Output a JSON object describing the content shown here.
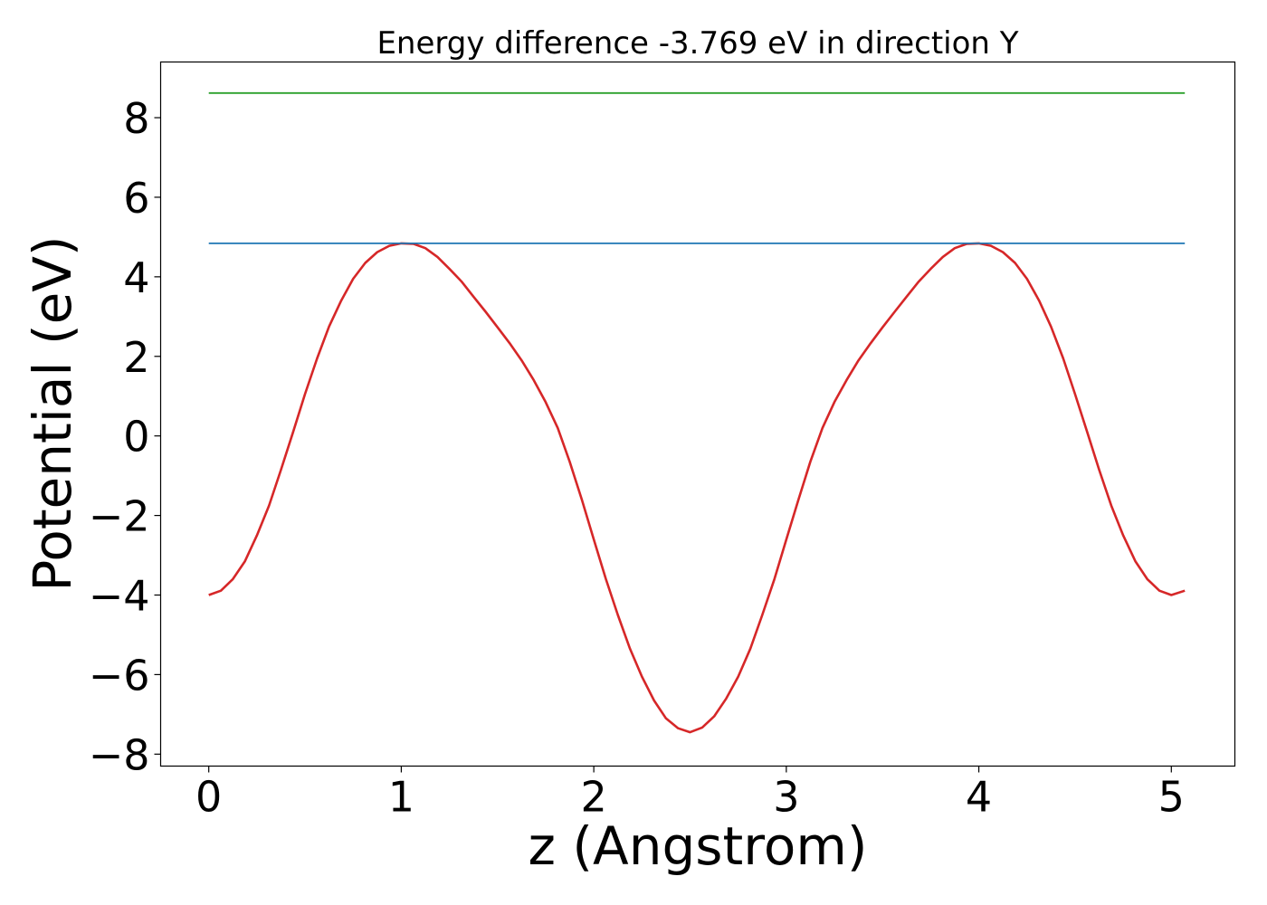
{
  "chart_data": {
    "type": "line",
    "title": "Energy difference -3.769 eV in direction Y",
    "xlabel": "z (Angstrom)",
    "ylabel": "Potential (eV)",
    "xlim": [
      -0.25,
      5.33
    ],
    "ylim": [
      -8.3,
      9.4
    ],
    "xticks": [
      0,
      1,
      2,
      3,
      4,
      5
    ],
    "xtick_labels": [
      "0",
      "1",
      "2",
      "3",
      "4",
      "5"
    ],
    "yticks": [
      -8,
      -6,
      -4,
      -2,
      0,
      2,
      4,
      6,
      8
    ],
    "ytick_labels": [
      "−8",
      "−6",
      "−4",
      "−2",
      "0",
      "2",
      "4",
      "6",
      "8"
    ],
    "grid": false,
    "legend": false,
    "series": [
      {
        "color": "#d62728",
        "x": [
          0,
          0.063,
          0.125,
          0.188,
          0.25,
          0.313,
          0.375,
          0.438,
          0.5,
          0.563,
          0.625,
          0.688,
          0.75,
          0.813,
          0.875,
          0.938,
          1.0,
          1.063,
          1.125,
          1.188,
          1.25,
          1.313,
          1.375,
          1.438,
          1.5,
          1.563,
          1.625,
          1.688,
          1.75,
          1.813,
          1.875,
          1.938,
          2.0,
          2.063,
          2.125,
          2.188,
          2.25,
          2.313,
          2.375,
          2.438,
          2.5,
          2.563,
          2.625,
          2.688,
          2.75,
          2.813,
          2.875,
          2.938,
          3.0,
          3.063,
          3.125,
          3.188,
          3.25,
          3.313,
          3.375,
          3.438,
          3.5,
          3.563,
          3.625,
          3.688,
          3.75,
          3.813,
          3.875,
          3.938,
          4.0,
          4.063,
          4.125,
          4.188,
          4.25,
          4.313,
          4.375,
          4.438,
          4.5,
          4.563,
          4.625,
          4.688,
          4.75,
          4.813,
          4.875,
          4.938,
          5.0,
          5.07
        ],
        "y": [
          -4.0,
          -3.89,
          -3.6,
          -3.15,
          -2.5,
          -1.75,
          -0.85,
          0.1,
          1.05,
          1.95,
          2.75,
          3.4,
          3.95,
          4.35,
          4.62,
          4.78,
          4.84,
          4.83,
          4.72,
          4.5,
          4.2,
          3.88,
          3.5,
          3.12,
          2.73,
          2.33,
          1.9,
          1.4,
          0.85,
          0.2,
          -0.65,
          -1.6,
          -2.6,
          -3.6,
          -4.5,
          -5.35,
          -6.05,
          -6.65,
          -7.1,
          -7.35,
          -7.45,
          -7.33,
          -7.05,
          -6.6,
          -6.05,
          -5.35,
          -4.5,
          -3.6,
          -2.6,
          -1.6,
          -0.65,
          0.2,
          0.85,
          1.4,
          1.9,
          2.33,
          2.73,
          3.12,
          3.5,
          3.88,
          4.2,
          4.5,
          4.72,
          4.83,
          4.84,
          4.78,
          4.62,
          4.35,
          3.95,
          3.4,
          2.75,
          1.95,
          1.05,
          0.1,
          -0.85,
          -1.75,
          -2.5,
          -3.15,
          -3.6,
          -3.89,
          -4.0,
          -3.89
        ]
      },
      {
        "color": "#1f77b4",
        "x": [
          0,
          5.07
        ],
        "y": [
          4.84,
          4.84
        ]
      },
      {
        "color": "#2ca02c",
        "x": [
          0,
          5.07
        ],
        "y": [
          8.62,
          8.62
        ]
      }
    ]
  }
}
